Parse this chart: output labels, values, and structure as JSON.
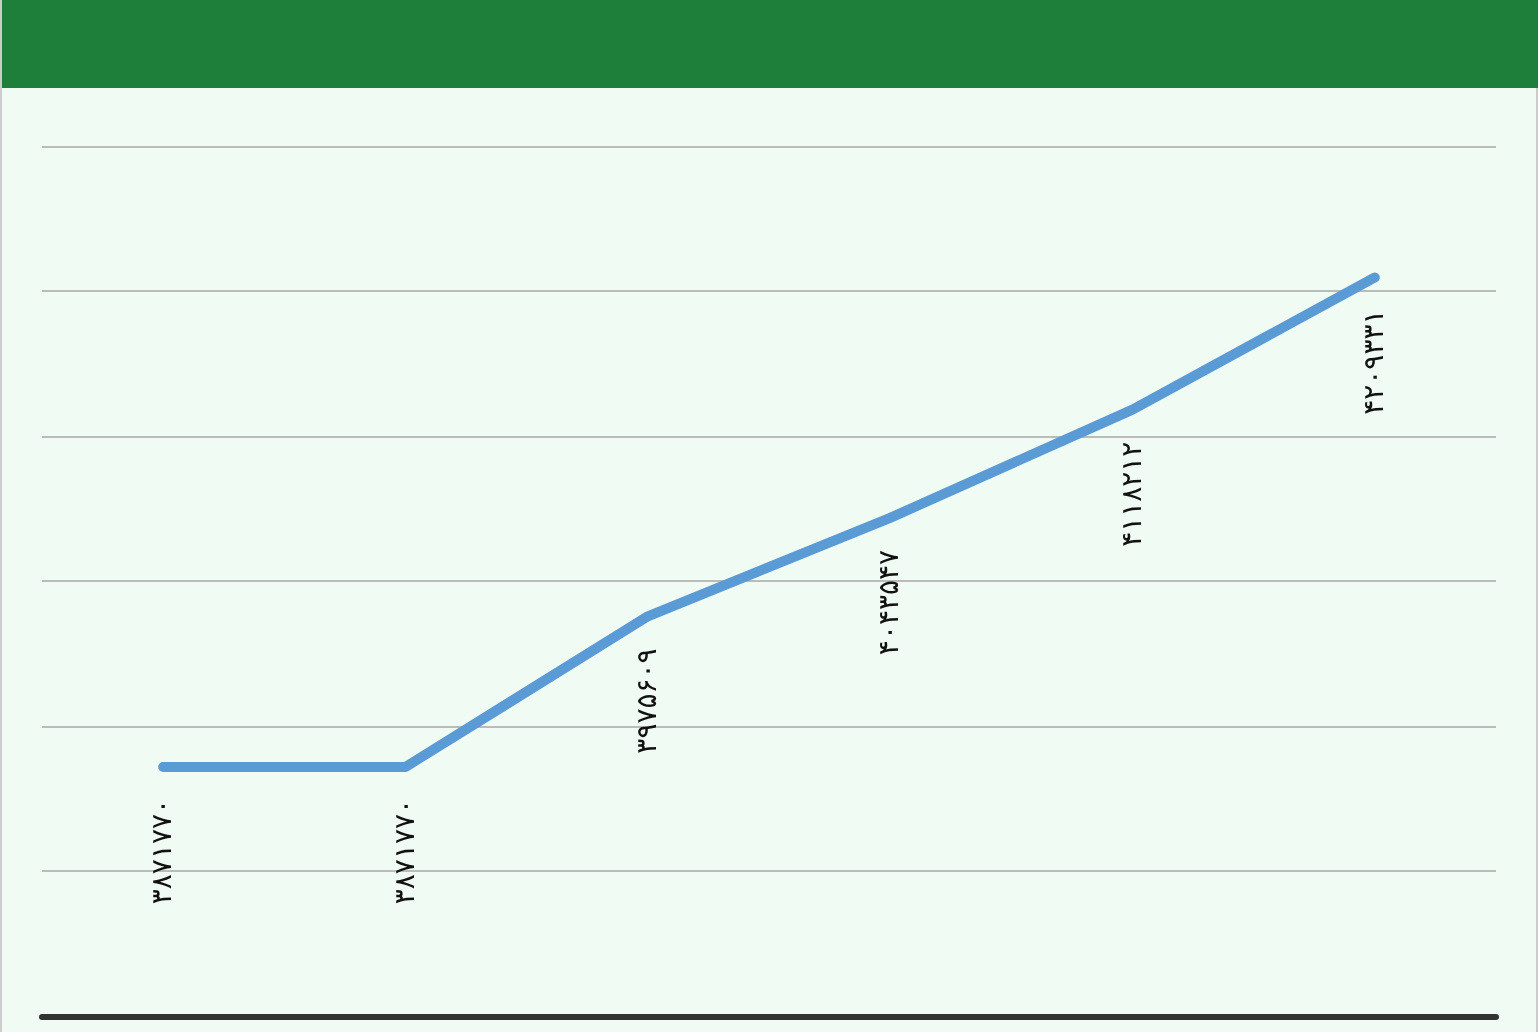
{
  "chart_data": {
    "type": "line",
    "categories": [
      null,
      null,
      null,
      null,
      null,
      null
    ],
    "series": [
      {
        "color": "#5b9bd5",
        "values": [
          3871770,
          3871770,
          3975609,
          4043547,
          4118212,
          4209331
        ],
        "value_labels": [
          "۳۸۷۱۷۷۰",
          "۳۸۷۱۷۷۰",
          "۳۹۷۵۶۰۹",
          "۴۰۴۳۵۴۷",
          "۴۱۱۸۲۱۲",
          "۴۲۰۹۳۳۱"
        ]
      }
    ],
    "ylim": [
      3700000,
      4300000
    ],
    "yticks": [
      {
        "value": 3800000,
        "label": null
      },
      {
        "value": 3900000,
        "label": null
      },
      {
        "value": 4000000,
        "label": null
      },
      {
        "value": 4100000,
        "label": null
      },
      {
        "value": 4200000,
        "label": null
      },
      {
        "value": 4300000,
        "label": null
      }
    ],
    "grid": "y",
    "marker": "none",
    "line_style": "solid"
  }
}
